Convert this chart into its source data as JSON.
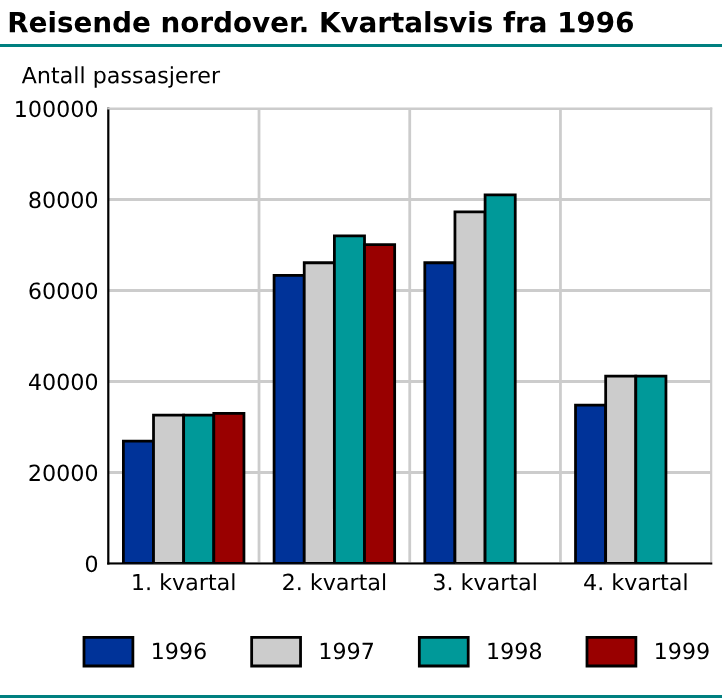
{
  "chart_data": {
    "type": "bar",
    "title": "Reisende nordover. Kvartalsvis fra 1996",
    "ylabel": "Antall passasjerer",
    "categories": [
      "1. kvartal",
      "2. kvartal",
      "3. kvartal",
      "4. kvartal"
    ],
    "series": [
      {
        "name": "1996",
        "color": "#003399",
        "values": [
          26900,
          63300,
          66100,
          34800
        ]
      },
      {
        "name": "1997",
        "color": "#cccccc",
        "values": [
          32600,
          66100,
          77300,
          41200
        ]
      },
      {
        "name": "1998",
        "color": "#009999",
        "values": [
          32600,
          72000,
          81000,
          41200
        ]
      },
      {
        "name": "1999",
        "color": "#990000",
        "values": [
          33000,
          70100,
          null,
          null
        ]
      }
    ],
    "ylim": [
      0,
      100000
    ],
    "yticks": [
      0,
      20000,
      40000,
      60000,
      80000,
      100000
    ],
    "grid": true,
    "legend": "bottom"
  }
}
